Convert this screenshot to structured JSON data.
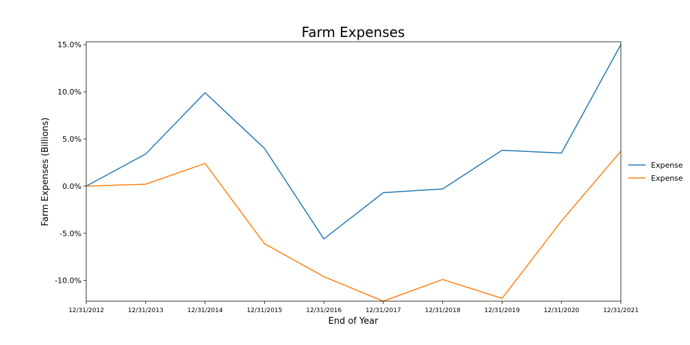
{
  "chart_data": {
    "type": "line",
    "title": "Farm Expenses",
    "xlabel": "End of Year",
    "ylabel": "Farm Expenses (Billions)",
    "categories": [
      "12/31/2012",
      "12/31/2013",
      "12/31/2014",
      "12/31/2015",
      "12/31/2016",
      "12/31/2017",
      "12/31/2018",
      "12/31/2019",
      "12/31/2020",
      "12/31/2021"
    ],
    "series": [
      {
        "name": "Expense",
        "color": "#1f77b4",
        "values": [
          0.0,
          3.4,
          9.9,
          4.0,
          -5.6,
          -0.7,
          -0.3,
          3.8,
          3.5,
          15.0
        ]
      },
      {
        "name": "Expense",
        "color": "#ff7f0e",
        "values": [
          0.0,
          0.2,
          2.4,
          -6.1,
          -9.6,
          -12.2,
          -9.9,
          -11.9,
          -3.7,
          3.7
        ]
      }
    ],
    "ylim": [
      -12.2,
      15.3
    ],
    "yticks": [
      15,
      10,
      5,
      0,
      -5,
      -10
    ],
    "ytick_labels": [
      "15.0%",
      "10.0%",
      "5.0%",
      "0.0%",
      "-5.0%",
      "-10.0%"
    ],
    "grid": false,
    "legend_position": "right"
  }
}
